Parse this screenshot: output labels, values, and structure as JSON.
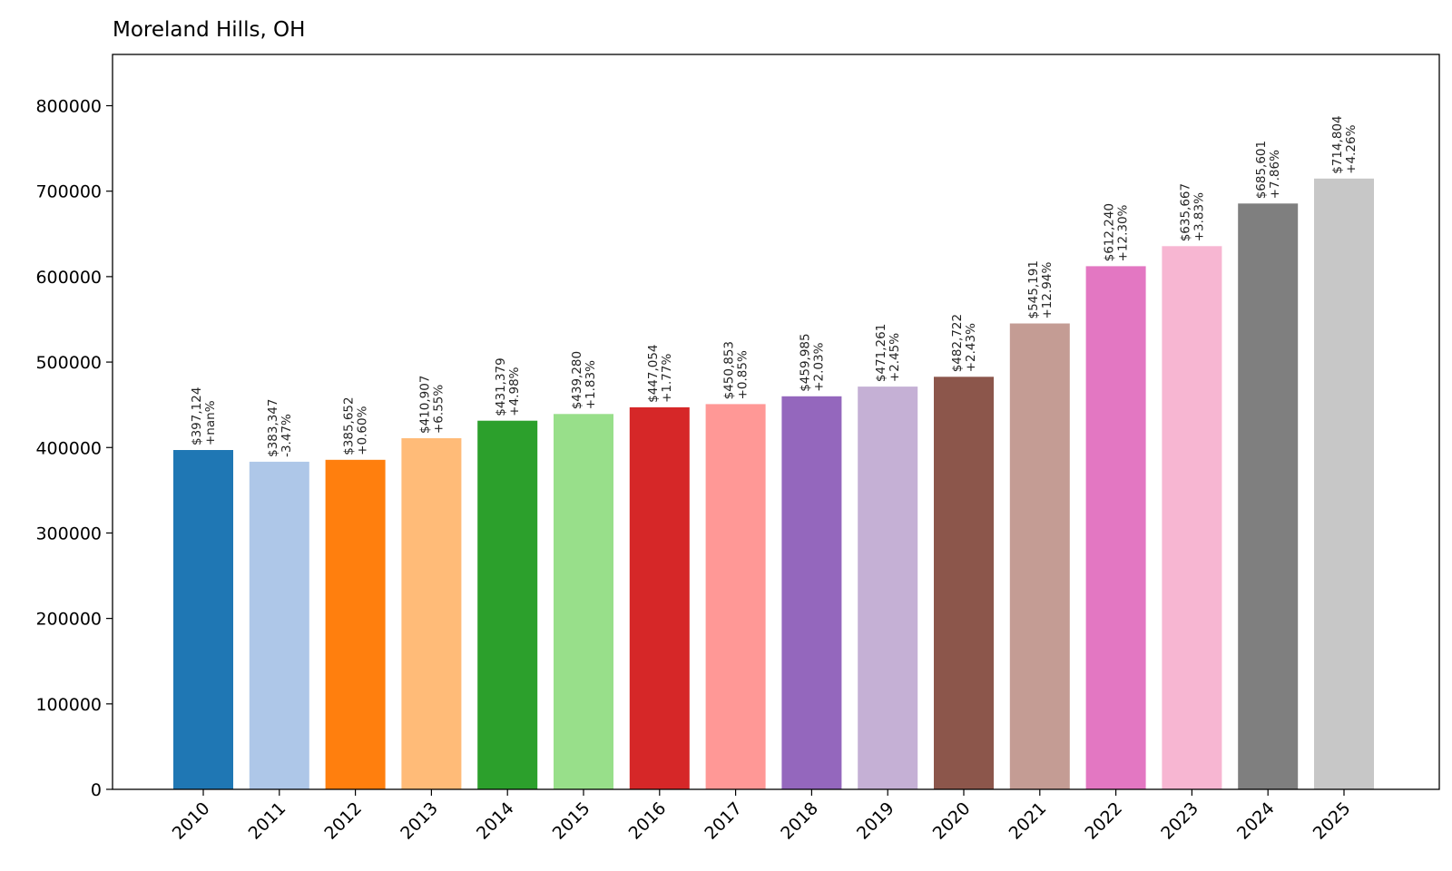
{
  "chart_data": {
    "type": "bar",
    "title": "Moreland Hills, OH",
    "xlabel": "",
    "ylabel": "",
    "ylim": [
      0,
      860000
    ],
    "yticks": [
      0,
      100000,
      200000,
      300000,
      400000,
      500000,
      600000,
      700000,
      800000
    ],
    "ytick_labels": [
      "0",
      "100000",
      "200000",
      "300000",
      "400000",
      "500000",
      "600000",
      "700000",
      "800000"
    ],
    "categories": [
      "2010",
      "2011",
      "2012",
      "2013",
      "2014",
      "2015",
      "2016",
      "2017",
      "2018",
      "2019",
      "2020",
      "2021",
      "2022",
      "2023",
      "2024",
      "2025"
    ],
    "values": [
      397124,
      383347,
      385652,
      410907,
      431379,
      439280,
      447054,
      450853,
      459985,
      471261,
      482722,
      545191,
      612240,
      635667,
      685601,
      714804
    ],
    "value_labels": [
      "$397,124",
      "$383,347",
      "$385,652",
      "$410,907",
      "$431,379",
      "$439,280",
      "$447,054",
      "$450,853",
      "$459,985",
      "$471,261",
      "$482,722",
      "$545,191",
      "$612,240",
      "$635,667",
      "$685,601",
      "$714,804"
    ],
    "change_labels": [
      "+nan%",
      "-3.47%",
      "+0.60%",
      "+6.55%",
      "+4.98%",
      "+1.83%",
      "+1.77%",
      "+0.85%",
      "+2.03%",
      "+2.45%",
      "+2.43%",
      "+12.94%",
      "+12.30%",
      "+3.83%",
      "+7.86%",
      "+4.26%"
    ],
    "colors": [
      "#1f77b4",
      "#aec7e8",
      "#ff7f0e",
      "#ffbb78",
      "#2ca02c",
      "#98df8a",
      "#d62728",
      "#ff9896",
      "#9467bd",
      "#c5b0d5",
      "#8c564b",
      "#c49c94",
      "#e377c2",
      "#f7b6d2",
      "#7f7f7f",
      "#c7c7c7"
    ],
    "grid": false,
    "legend": "none"
  }
}
